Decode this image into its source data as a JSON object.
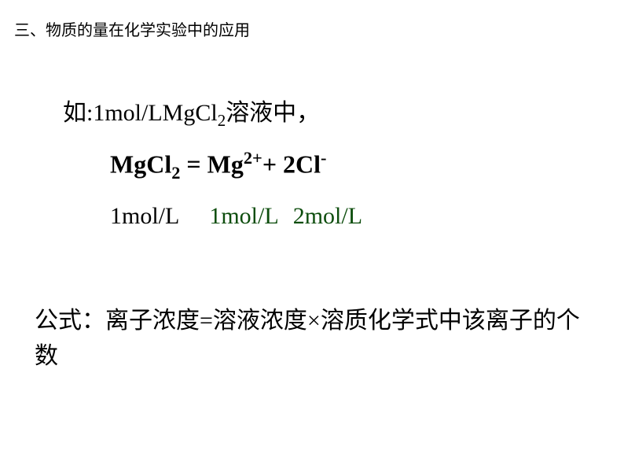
{
  "header": {
    "title": "三、物质的量在化学实验中的应用"
  },
  "content": {
    "line1_prefix": "如:1mol/LMgCl",
    "line1_sub": "2",
    "line1_suffix": "溶液中，",
    "equation": {
      "lhs_text": "MgCl",
      "lhs_sub": "2",
      "equals": " = ",
      "rhs1_text": " Mg",
      "rhs1_sup": "2+",
      "plus": "+ ",
      "rhs2_coef": " 2Cl",
      "rhs2_sup": "-"
    },
    "concentrations": {
      "c1": "1mol/L",
      "c2": "1mol/L",
      "c3": "2mol/L"
    },
    "formula_text": "公式：离子浓度=溶液浓度×溶质化学式中该离子的个数"
  },
  "colors": {
    "text": "#000000",
    "green": "#0d4d0d",
    "background": "#ffffff"
  }
}
